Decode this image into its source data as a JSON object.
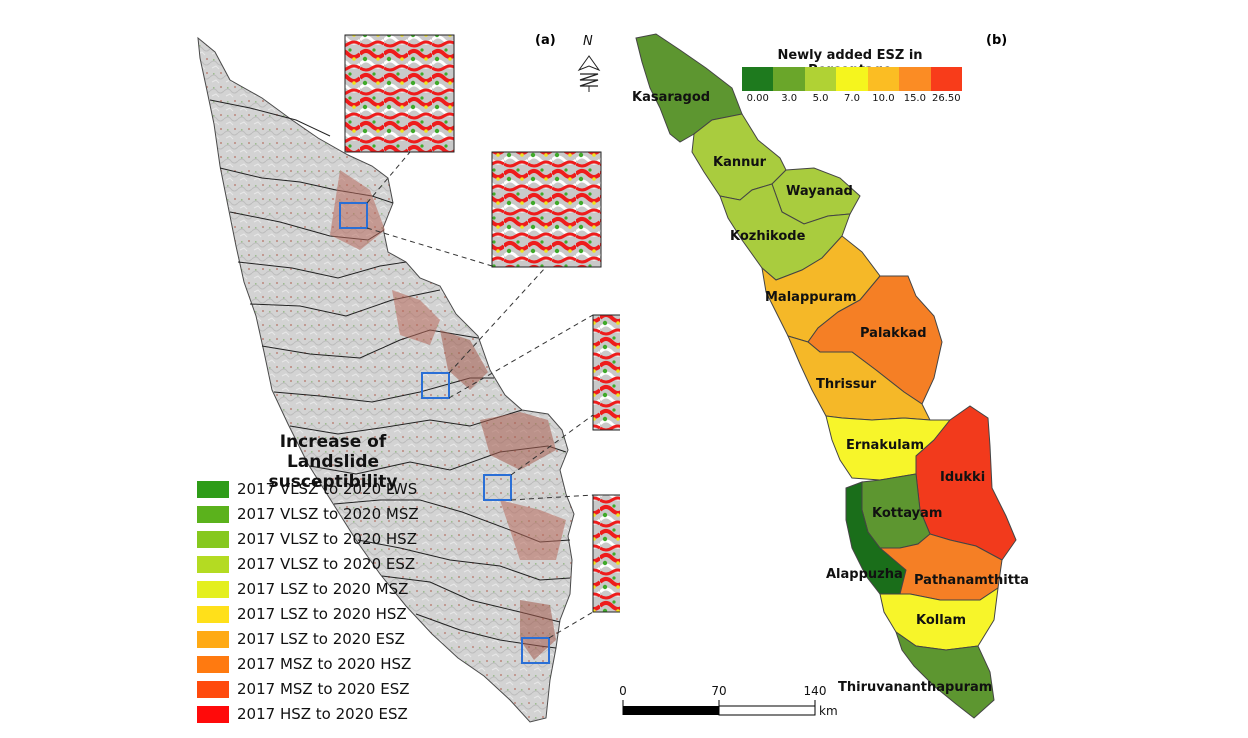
{
  "panel_a": {
    "label": "(a)",
    "north_letter": "N",
    "legend": {
      "title_line1": "Increase of",
      "title_line2": "Landslide susceptibility",
      "items": [
        {
          "label": "2017 VLSZ to 2020 LWS",
          "color": "#2e9c18"
        },
        {
          "label": "2017 VLSZ to 2020 MSZ",
          "color": "#5bb21c"
        },
        {
          "label": "2017 VLSZ to 2020 HSZ",
          "color": "#86c81e"
        },
        {
          "label": "2017 VLSZ to 2020 ESZ",
          "color": "#b4db22"
        },
        {
          "label": "2017 LSZ to 2020 MSZ",
          "color": "#e4ef1e"
        },
        {
          "label": "2017 LSZ to 2020 HSZ",
          "color": "#ffe01a"
        },
        {
          "label": "2017 LSZ to 2020 ESZ",
          "color": "#ffaa14"
        },
        {
          "label": "2017 MSZ to 2020 HSZ",
          "color": "#ff7a10"
        },
        {
          "label": "2017 MSZ to 2020 ESZ",
          "color": "#ff4a0c"
        },
        {
          "label": "2017 HSZ to 2020 ESZ",
          "color": "#ff0a0a"
        }
      ]
    }
  },
  "panel_b": {
    "label": "(b)",
    "colorbar": {
      "title": "Newly added ESZ in Percentage",
      "ticks": [
        "0.00",
        "3.0",
        "5.0",
        "7.0",
        "10.0",
        "15.0",
        "26.50"
      ],
      "colors": [
        "#1e7a1e",
        "#6aa62a",
        "#b0d234",
        "#f5f51e",
        "#fbbd23",
        "#fb8c24",
        "#f83c1a"
      ]
    },
    "districts": [
      {
        "name": "Kasaragod",
        "color": "#5d9630"
      },
      {
        "name": "Kannur",
        "color": "#a9cc3e"
      },
      {
        "name": "Wayanad",
        "color": "#a9cc3e"
      },
      {
        "name": "Kozhikode",
        "color": "#a9cc3e"
      },
      {
        "name": "Malappuram",
        "color": "#f5b828"
      },
      {
        "name": "Palakkad",
        "color": "#f57f25"
      },
      {
        "name": "Thrissur",
        "color": "#f5b828"
      },
      {
        "name": "Ernakulam",
        "color": "#f7f52a"
      },
      {
        "name": "Idukki",
        "color": "#f23a1c"
      },
      {
        "name": "Kottayam",
        "color": "#5d9630"
      },
      {
        "name": "Alappuzha",
        "color": "#1a6e1a"
      },
      {
        "name": "Pathanamthitta",
        "color": "#f57f25"
      },
      {
        "name": "Kollam",
        "color": "#f7f52a"
      },
      {
        "name": "Thiruvananthapuram",
        "color": "#5d9630"
      }
    ],
    "scale_bar": {
      "ticks": [
        "0",
        "70",
        "140"
      ],
      "unit": "km"
    }
  }
}
